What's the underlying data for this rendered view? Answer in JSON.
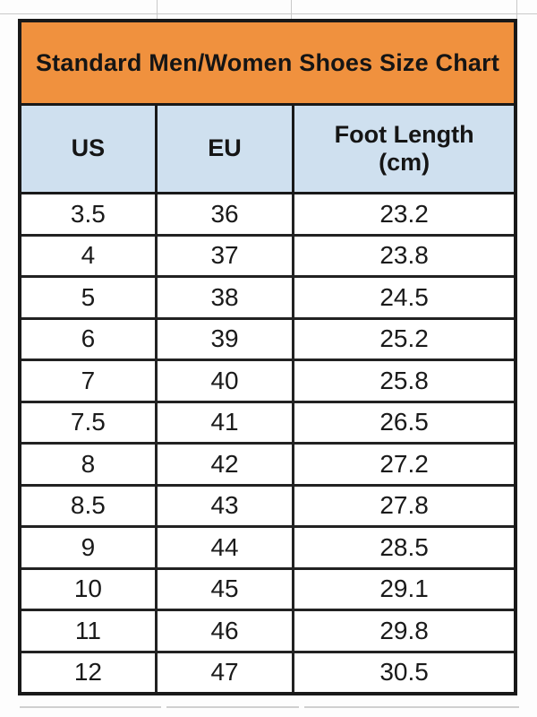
{
  "chart_data": {
    "type": "table",
    "title": "Standard Men/Women Shoes Size Chart",
    "columns": [
      "US",
      "EU",
      "Foot Length (cm)"
    ],
    "rows": [
      [
        3.5,
        36,
        23.2
      ],
      [
        4,
        37,
        23.8
      ],
      [
        5,
        38,
        24.5
      ],
      [
        6,
        39,
        25.2
      ],
      [
        7,
        40,
        25.8
      ],
      [
        7.5,
        41,
        26.5
      ],
      [
        8,
        42,
        27.2
      ],
      [
        8.5,
        43,
        27.8
      ],
      [
        9,
        44,
        28.5
      ],
      [
        10,
        45,
        29.1
      ],
      [
        11,
        46,
        29.8
      ],
      [
        12,
        47,
        30.5
      ]
    ]
  },
  "table": {
    "title": "Standard Men/Women Shoes Size Chart",
    "columns": [
      {
        "label": "US"
      },
      {
        "label": "EU"
      },
      {
        "label": "Foot Length",
        "label_line2": "(cm)"
      }
    ],
    "rows": [
      {
        "us": "3.5",
        "eu": "36",
        "cm": "23.2"
      },
      {
        "us": "4",
        "eu": "37",
        "cm": "23.8"
      },
      {
        "us": "5",
        "eu": "38",
        "cm": "24.5"
      },
      {
        "us": "6",
        "eu": "39",
        "cm": "25.2"
      },
      {
        "us": "7",
        "eu": "40",
        "cm": "25.8"
      },
      {
        "us": "7.5",
        "eu": "41",
        "cm": "26.5"
      },
      {
        "us": "8",
        "eu": "42",
        "cm": "27.2"
      },
      {
        "us": "8.5",
        "eu": "43",
        "cm": "27.8"
      },
      {
        "us": "9",
        "eu": "44",
        "cm": "28.5"
      },
      {
        "us": "10",
        "eu": "45",
        "cm": "29.1"
      },
      {
        "us": "11",
        "eu": "46",
        "cm": "29.8"
      },
      {
        "us": "12",
        "eu": "47",
        "cm": "30.5"
      }
    ]
  },
  "colors": {
    "title_background": "#f0913e",
    "header_background": "#cfe0ef",
    "table_border": "#191919",
    "text": "#1a1a1a",
    "gridline": "#c9c9c9"
  }
}
